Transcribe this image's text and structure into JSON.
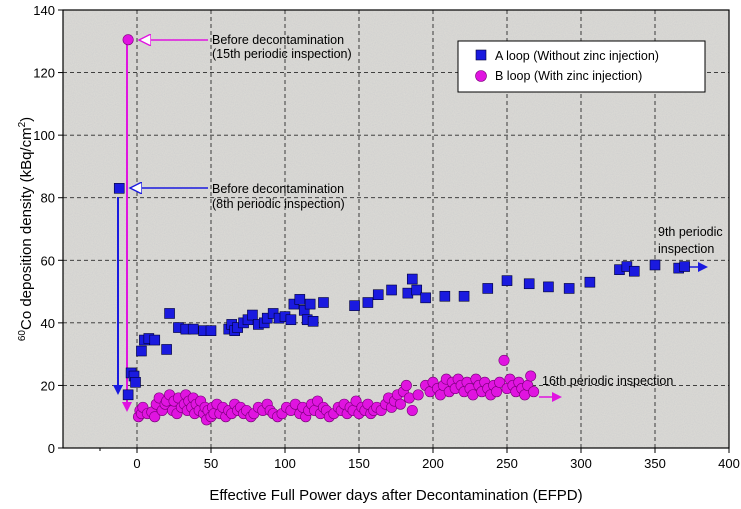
{
  "chart_data": {
    "type": "scatter",
    "title": "",
    "xlabel": "Effective Full Power days after Decontamination (EFPD)",
    "ylabel_sup": "60",
    "ylabel_main": "Co deposition density (kBq/cm",
    "ylabel_sup2": "2",
    "ylabel_end": ")",
    "xlim": [
      -50,
      400
    ],
    "ylim": [
      0,
      140
    ],
    "xticks": [
      "0",
      "50",
      "100",
      "150",
      "200",
      "250",
      "300",
      "350",
      "400"
    ],
    "yticks": [
      "0",
      "20",
      "40",
      "60",
      "80",
      "100",
      "120",
      "140"
    ],
    "xtick_values": [
      0,
      50,
      100,
      150,
      200,
      250,
      300,
      350,
      400
    ],
    "ytick_values": [
      0,
      20,
      40,
      60,
      80,
      100,
      120,
      140
    ],
    "grid": true,
    "legend_position": "top-right",
    "series": [
      {
        "name": "A loop (Without zinc injection)",
        "marker": "square",
        "color": "#1a1adf",
        "points": [
          [
            -12,
            83
          ],
          [
            -6,
            17
          ],
          [
            -4,
            24
          ],
          [
            -2,
            23
          ],
          [
            -1,
            21
          ],
          [
            3,
            31
          ],
          [
            5,
            34.5
          ],
          [
            8,
            35
          ],
          [
            12,
            34.5
          ],
          [
            20,
            31.5
          ],
          [
            22,
            43
          ],
          [
            28,
            38.5
          ],
          [
            33,
            38
          ],
          [
            38,
            38
          ],
          [
            45,
            37.5
          ],
          [
            50,
            37.5
          ],
          [
            62,
            38
          ],
          [
            64,
            39.5
          ],
          [
            66,
            37.5
          ],
          [
            68,
            38.5
          ],
          [
            72,
            40
          ],
          [
            75,
            41
          ],
          [
            78,
            42.5
          ],
          [
            82,
            39.5
          ],
          [
            86,
            40
          ],
          [
            88,
            41.5
          ],
          [
            92,
            43
          ],
          [
            96,
            41.5
          ],
          [
            100,
            42
          ],
          [
            104,
            41
          ],
          [
            106,
            46
          ],
          [
            110,
            47.5
          ],
          [
            113,
            44
          ],
          [
            115,
            41
          ],
          [
            117,
            46
          ],
          [
            119,
            40.5
          ],
          [
            126,
            46.5
          ],
          [
            147,
            45.5
          ],
          [
            156,
            46.5
          ],
          [
            163,
            49
          ],
          [
            172,
            50.5
          ],
          [
            183,
            49.5
          ],
          [
            186,
            54
          ],
          [
            189,
            50.5
          ],
          [
            195,
            48
          ],
          [
            208,
            48.5
          ],
          [
            221,
            48.5
          ],
          [
            237,
            51
          ],
          [
            250,
            53.5
          ],
          [
            265,
            52.5
          ],
          [
            278,
            51.5
          ],
          [
            292,
            51
          ],
          [
            306,
            53
          ],
          [
            326,
            57
          ],
          [
            331,
            58
          ],
          [
            336,
            56.5
          ],
          [
            350,
            58.5
          ],
          [
            366,
            57.5
          ],
          [
            370,
            58
          ]
        ]
      },
      {
        "name": "B loop (With zinc injection)",
        "marker": "circle",
        "color": "#e014e0",
        "points": [
          [
            -6,
            130.5
          ],
          [
            1,
            10
          ],
          [
            2,
            12
          ],
          [
            3,
            11
          ],
          [
            4,
            13
          ],
          [
            7,
            11
          ],
          [
            10,
            11.5
          ],
          [
            12,
            10
          ],
          [
            13,
            14
          ],
          [
            15,
            16
          ],
          [
            17,
            12
          ],
          [
            19,
            14
          ],
          [
            20,
            15
          ],
          [
            22,
            17
          ],
          [
            24,
            12
          ],
          [
            25,
            15
          ],
          [
            27,
            11
          ],
          [
            28,
            16
          ],
          [
            30,
            13
          ],
          [
            32,
            14
          ],
          [
            33,
            17
          ],
          [
            34,
            12
          ],
          [
            35,
            15
          ],
          [
            37,
            13
          ],
          [
            38,
            16
          ],
          [
            39,
            11
          ],
          [
            40,
            14
          ],
          [
            42,
            12
          ],
          [
            43,
            15
          ],
          [
            45,
            11
          ],
          [
            46,
            13
          ],
          [
            47,
            9
          ],
          [
            48,
            12
          ],
          [
            50,
            10
          ],
          [
            51,
            13
          ],
          [
            52,
            11
          ],
          [
            54,
            14
          ],
          [
            56,
            11
          ],
          [
            58,
            13
          ],
          [
            60,
            10
          ],
          [
            62,
            12
          ],
          [
            64,
            11
          ],
          [
            66,
            14
          ],
          [
            68,
            12
          ],
          [
            70,
            13
          ],
          [
            72,
            11
          ],
          [
            74,
            12
          ],
          [
            77,
            10
          ],
          [
            79,
            11
          ],
          [
            82,
            13
          ],
          [
            85,
            12
          ],
          [
            88,
            14
          ],
          [
            90,
            12
          ],
          [
            92,
            11
          ],
          [
            95,
            10
          ],
          [
            98,
            11
          ],
          [
            101,
            13
          ],
          [
            104,
            12
          ],
          [
            107,
            14
          ],
          [
            110,
            11
          ],
          [
            112,
            13
          ],
          [
            114,
            10
          ],
          [
            116,
            12
          ],
          [
            118,
            14
          ],
          [
            120,
            12
          ],
          [
            122,
            15
          ],
          [
            124,
            11
          ],
          [
            126,
            13
          ],
          [
            128,
            12
          ],
          [
            130,
            10
          ],
          [
            133,
            11
          ],
          [
            136,
            13
          ],
          [
            138,
            12
          ],
          [
            140,
            14
          ],
          [
            142,
            11
          ],
          [
            144,
            13
          ],
          [
            146,
            12
          ],
          [
            148,
            15
          ],
          [
            150,
            11
          ],
          [
            152,
            13
          ],
          [
            154,
            12
          ],
          [
            156,
            14
          ],
          [
            158,
            11
          ],
          [
            160,
            12
          ],
          [
            162,
            13
          ],
          [
            165,
            12
          ],
          [
            168,
            14
          ],
          [
            170,
            16
          ],
          [
            172,
            13
          ],
          [
            174,
            15
          ],
          [
            176,
            17
          ],
          [
            178,
            14
          ],
          [
            180,
            18
          ],
          [
            182,
            20
          ],
          [
            184,
            16
          ],
          [
            186,
            12
          ],
          [
            190,
            17
          ],
          [
            195,
            20
          ],
          [
            198,
            18
          ],
          [
            200,
            21
          ],
          [
            203,
            19
          ],
          [
            205,
            17
          ],
          [
            207,
            20
          ],
          [
            209,
            22
          ],
          [
            211,
            18
          ],
          [
            213,
            21
          ],
          [
            215,
            19
          ],
          [
            217,
            22
          ],
          [
            219,
            20
          ],
          [
            221,
            18
          ],
          [
            223,
            21
          ],
          [
            225,
            19
          ],
          [
            227,
            17
          ],
          [
            229,
            22
          ],
          [
            231,
            20
          ],
          [
            233,
            18
          ],
          [
            235,
            21
          ],
          [
            237,
            19
          ],
          [
            239,
            17
          ],
          [
            241,
            20
          ],
          [
            243,
            18
          ],
          [
            245,
            21
          ],
          [
            248,
            28
          ],
          [
            250,
            19
          ],
          [
            252,
            22
          ],
          [
            254,
            20
          ],
          [
            256,
            18
          ],
          [
            258,
            21
          ],
          [
            260,
            19
          ],
          [
            262,
            17
          ],
          [
            264,
            20
          ],
          [
            266,
            23
          ],
          [
            268,
            18
          ]
        ]
      }
    ],
    "annotations": [
      {
        "line1": "Before decontamination",
        "line2": "(15th periodic inspection)"
      },
      {
        "line1": "Before decontamination",
        "line2": "(8th periodic inspection)"
      },
      {
        "line1": "9th periodic",
        "line2": "inspection"
      },
      {
        "line1": "16th periodic inspection"
      }
    ]
  }
}
